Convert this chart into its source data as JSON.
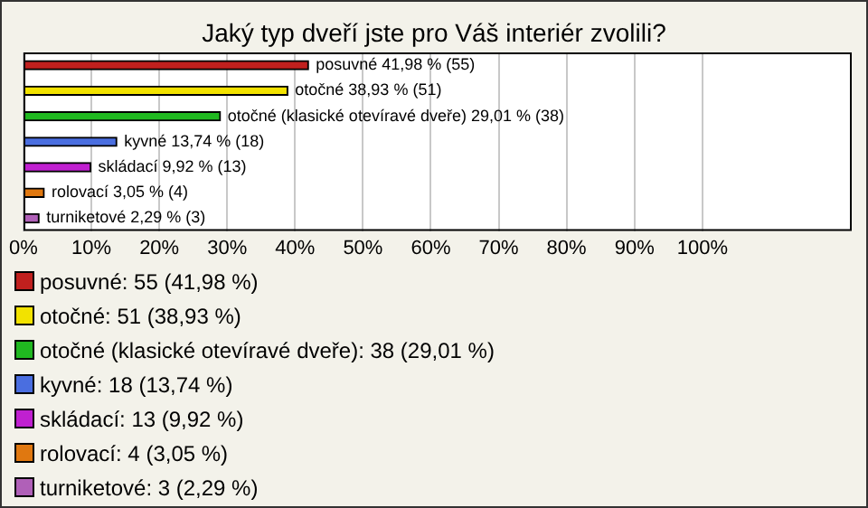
{
  "chart_data": {
    "type": "bar",
    "orientation": "horizontal",
    "title": "Jaký typ dveří jste pro Váš interiér zvolili?",
    "categories": [
      null,
      null,
      null,
      null,
      null,
      null,
      null
    ],
    "values": [
      41.98,
      38.93,
      29.01,
      13.74,
      9.92,
      3.05,
      2.29
    ],
    "colors": [
      "#c0201e",
      "#f2e200",
      "#20b820",
      "#4a6ee0",
      "#c020d0",
      "#e07810",
      "#b060b8"
    ],
    "value_labels": [
      "posuvné 41,98 % (55)",
      "otočné 38,93 % (51)",
      "otočné (klasické otevíravé dveře) 29,01 % (38)",
      "kyvné 13,74 % (18)",
      "skládací 9,92 % (13)",
      "rolovací 3,05 % (4)",
      "turniketové 2,29 % (3)"
    ],
    "xlim": [
      0,
      122
    ],
    "xticks": [
      {
        "value": 0,
        "label": "0%"
      },
      {
        "value": 10,
        "label": "10%"
      },
      {
        "value": 20,
        "label": "20%"
      },
      {
        "value": 30,
        "label": "30%"
      },
      {
        "value": 40,
        "label": "40%"
      },
      {
        "value": 50,
        "label": "50%"
      },
      {
        "value": 60,
        "label": "60%"
      },
      {
        "value": 70,
        "label": "70%"
      },
      {
        "value": 80,
        "label": "80%"
      },
      {
        "value": 90,
        "label": "90%"
      },
      {
        "value": 100,
        "label": "100%"
      }
    ],
    "grid": "x",
    "tick_labels": "x",
    "annotations": [
      "posuvné: 55 (41,98 %)",
      "otočné: 51 (38,93 %)",
      "otočné (klasické otevíravé dveře): 38 (29,01 %)",
      "kyvné: 18 (13,74 %)",
      "skládací: 13 (9,92 %)",
      "rolovací: 4 (3,05 %)",
      "turniketové: 3 (2,29 %)"
    ]
  }
}
